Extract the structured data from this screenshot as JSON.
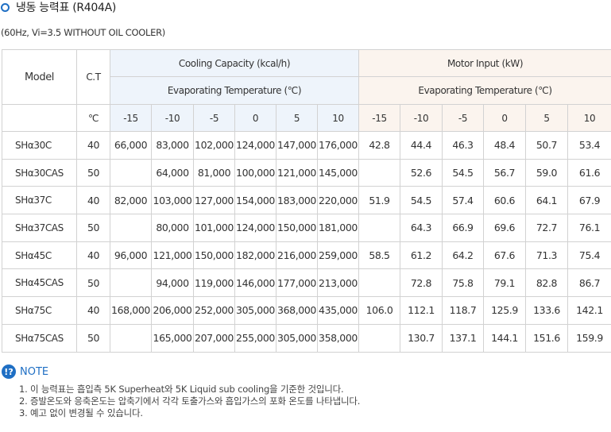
{
  "title": "냉동 능력표 (R404A)",
  "condition": "(60Hz, Vi=3.5 WITHOUT OIL COOLER)",
  "table": {
    "model_header": "Model",
    "ct_header": "C.T",
    "ct_unit": "℃",
    "cooling_header": "Cooling Capacity (kcal/h)",
    "cooling_sub": "Evaporating Temperature (℃)",
    "motor_header": "Motor Input (kW)",
    "motor_sub": "Evaporating Temperature (℃)",
    "temps": [
      "-15",
      "-10",
      "-5",
      "0",
      "5",
      "10"
    ],
    "rows": [
      {
        "model": "SHα30C",
        "ct": "40",
        "cooling": [
          "66,000",
          "83,000",
          "102,000",
          "124,000",
          "147,000",
          "176,000"
        ],
        "motor": [
          "42.8",
          "44.4",
          "46.3",
          "48.4",
          "50.7",
          "53.4"
        ]
      },
      {
        "model": "SHα30CAS",
        "ct": "50",
        "cooling": [
          "",
          "64,000",
          "81,000",
          "100,000",
          "121,000",
          "145,000"
        ],
        "motor": [
          "",
          "52.6",
          "54.5",
          "56.7",
          "59.0",
          "61.6"
        ]
      },
      {
        "model": "SHα37C",
        "ct": "40",
        "cooling": [
          "82,000",
          "103,000",
          "127,000",
          "154,000",
          "183,000",
          "220,000"
        ],
        "motor": [
          "51.9",
          "54.5",
          "57.4",
          "60.6",
          "64.1",
          "67.9"
        ]
      },
      {
        "model": "SHα37CAS",
        "ct": "50",
        "cooling": [
          "",
          "80,000",
          "101,000",
          "124,000",
          "150,000",
          "181,000"
        ],
        "motor": [
          "",
          "64.3",
          "66.9",
          "69.6",
          "72.7",
          "76.1"
        ]
      },
      {
        "model": "SHα45C",
        "ct": "40",
        "cooling": [
          "96,000",
          "121,000",
          "150,000",
          "182,000",
          "216,000",
          "259,000"
        ],
        "motor": [
          "58.5",
          "61.2",
          "64.2",
          "67.6",
          "71.3",
          "75.4"
        ]
      },
      {
        "model": "SHα45CAS",
        "ct": "50",
        "cooling": [
          "",
          "94,000",
          "119,000",
          "146,000",
          "177,000",
          "213,000"
        ],
        "motor": [
          "",
          "72.8",
          "75.8",
          "79.1",
          "82.8",
          "86.7"
        ]
      },
      {
        "model": "SHα75C",
        "ct": "40",
        "cooling": [
          "168,000",
          "206,000",
          "252,000",
          "305,000",
          "368,000",
          "435,000"
        ],
        "motor": [
          "106.0",
          "112.1",
          "118.7",
          "125.9",
          "133.6",
          "142.1"
        ]
      },
      {
        "model": "SHα75CAS",
        "ct": "50",
        "cooling": [
          "",
          "165,000",
          "207,000",
          "255,000",
          "305,000",
          "358,000"
        ],
        "motor": [
          "",
          "130.7",
          "137.1",
          "144.1",
          "151.6",
          "159.9"
        ]
      }
    ]
  },
  "note": {
    "title": "NOTE",
    "icon_text": "!?",
    "items": [
      "1. 이 능력표는 흡입측 5K Superheat와 5K Liquid sub cooling을 기준한 것입니다.",
      "2. 증발온도와 응축온도는 압축기에서 각각 토출가스와 흡입가스의 포화 온도를 나타냅니다.",
      "3. 예고 없이 변경될 수 있습니다."
    ]
  },
  "colors": {
    "accent": "#1f6fc4",
    "cooling_header_bg": "#eef4fb",
    "motor_header_bg": "#fbf4ee",
    "border": "#d2d2d2"
  }
}
